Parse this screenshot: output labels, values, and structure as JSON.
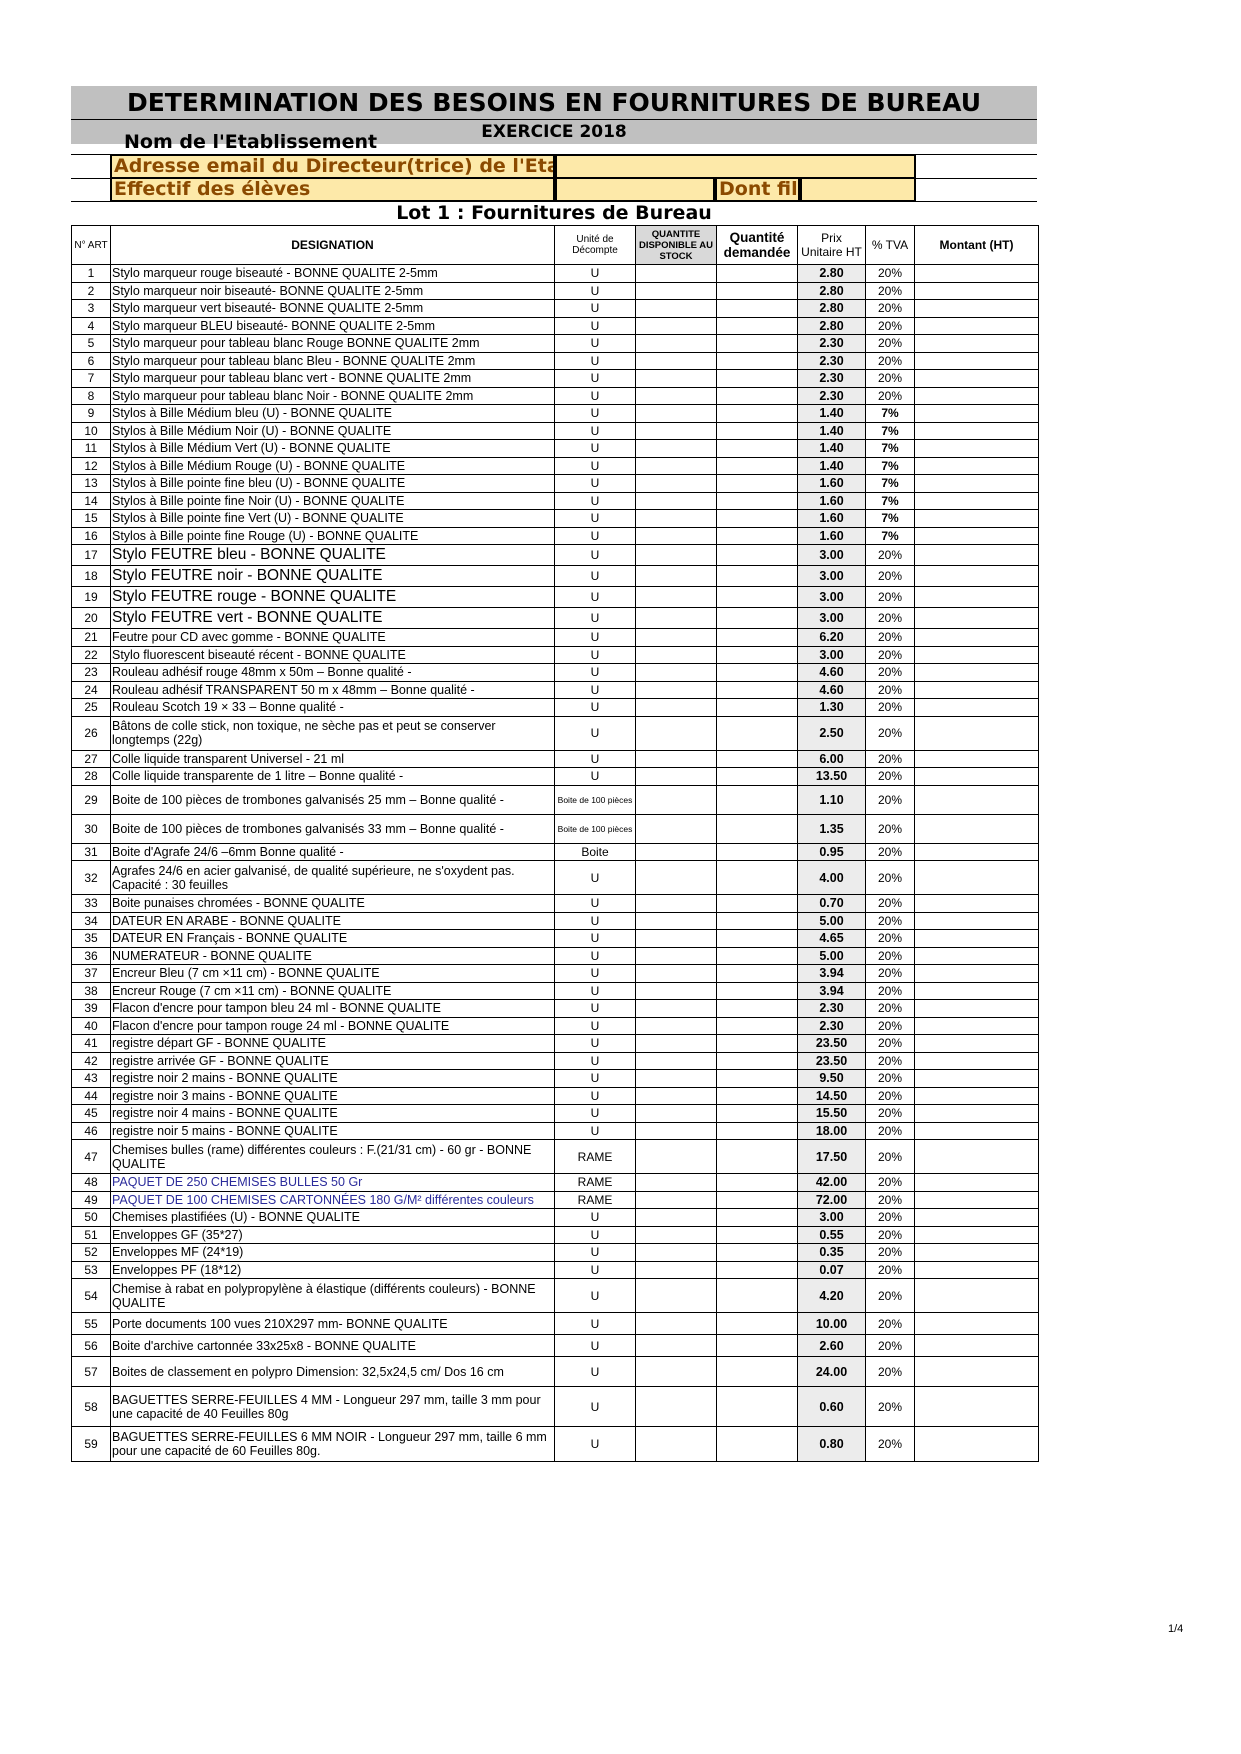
{
  "header": {
    "title": "DETERMINATION DES BESOINS EN FOURNITURES DE BUREAU",
    "exercise": "EXERCICE 2018",
    "establishment_label": "Nom de l'Etablissement",
    "email_label": "Adresse email du Directeur(trice) de l'Etabl",
    "email_value": "",
    "students_label": "Effectif des élèves",
    "students_value": "",
    "girls_label": "Dont fille",
    "girls_value": "",
    "lot_title": "Lot 1 : Fournitures de Bureau"
  },
  "colors": {
    "form_fill": "#fde9a9",
    "form_text": "#8b4a00",
    "title_band": "#c0c0c0",
    "blue_text": "#2b2b9b"
  },
  "columns": {
    "num": "N° ART",
    "designation": "DESIGNATION",
    "unit": "Unité de Décompte",
    "stock": "QUANTITE DISPONIBLE AU STOCK",
    "qty": "Quantité demandée",
    "price": "Prix Unitaire HT",
    "tva": "% TVA",
    "amount": "Montant (HT)"
  },
  "rows": [
    {
      "n": "1",
      "d": "Stylo marqueur rouge biseauté - BONNE QUALITE  2-5mm",
      "u": "U",
      "p": "2.80",
      "t": "20%"
    },
    {
      "n": "2",
      "d": "Stylo marqueur noir biseauté- BONNE QUALITE  2-5mm",
      "u": "U",
      "p": "2.80",
      "t": "20%"
    },
    {
      "n": "3",
      "d": "Stylo marqueur vert biseauté- BONNE QUALITE  2-5mm",
      "u": "U",
      "p": "2.80",
      "t": "20%"
    },
    {
      "n": "4",
      "d": "Stylo marqueur BLEU biseauté- BONNE QUALITE  2-5mm",
      "u": "U",
      "p": "2.80",
      "t": "20%"
    },
    {
      "n": "5",
      "d": "Stylo marqueur pour tableau blanc Rouge BONNE QUALITE  2mm",
      "u": "U",
      "p": "2.30",
      "t": "20%"
    },
    {
      "n": "6",
      "d": "Stylo marqueur pour tableau blanc Bleu - BONNE QUALITE  2mm",
      "u": "U",
      "p": "2.30",
      "t": "20%"
    },
    {
      "n": "7",
      "d": "Stylo marqueur pour tableau blanc vert - BONNE QUALITE  2mm",
      "u": "U",
      "p": "2.30",
      "t": "20%"
    },
    {
      "n": "8",
      "d": "Stylo marqueur pour tableau blanc Noir -  BONNE QUALITE  2mm",
      "u": "U",
      "p": "2.30",
      "t": "20%"
    },
    {
      "n": "9",
      "d": "Stylos à Bille Médium bleu (U) - BONNE QUALITE",
      "u": "U",
      "p": "1.40",
      "t": "7%"
    },
    {
      "n": "10",
      "d": "Stylos à Bille Médium Noir  (U) - BONNE QUALITE",
      "u": "U",
      "p": "1.40",
      "t": "7%"
    },
    {
      "n": "11",
      "d": "Stylos à Bille Médium Vert  (U) - BONNE QUALITE",
      "u": "U",
      "p": "1.40",
      "t": "7%"
    },
    {
      "n": "12",
      "d": "Stylos à Bille Médium Rouge (U) - BONNE QUALITE",
      "u": "U",
      "p": "1.40",
      "t": "7%"
    },
    {
      "n": "13",
      "d": "Stylos à Bille pointe fine bleu (U) - BONNE QUALITE",
      "u": "U",
      "p": "1.60",
      "t": "7%"
    },
    {
      "n": "14",
      "d": "Stylos à Bille pointe fine Noir  (U) - BONNE QUALITE",
      "u": "U",
      "p": "1.60",
      "t": "7%"
    },
    {
      "n": "15",
      "d": "Stylos à Bille pointe fine Vert  (U) - BONNE QUALITE",
      "u": "U",
      "p": "1.60",
      "t": "7%"
    },
    {
      "n": "16",
      "d": "Stylos à Bille pointe fine Rouge (U) - BONNE QUALITE",
      "u": "U",
      "p": "1.60",
      "t": "7%"
    },
    {
      "n": "17",
      "d": "Stylo FEUTRE bleu - BONNE QUALITE",
      "u": "U",
      "p": "3.00",
      "t": "20%"
    },
    {
      "n": "18",
      "d": "Stylo FEUTRE  noir -  BONNE QUALITE",
      "u": "U",
      "p": "3.00",
      "t": "20%"
    },
    {
      "n": "19",
      "d": "Stylo FEUTRE rouge - BONNE QUALITE",
      "u": "U",
      "p": "3.00",
      "t": "20%"
    },
    {
      "n": "20",
      "d": "Stylo FEUTRE vert - BONNE QUALITE",
      "u": "U",
      "p": "3.00",
      "t": "20%"
    },
    {
      "n": "21",
      "d": "Feutre pour CD avec gomme - BONNE QUALITE",
      "u": "U",
      "p": "6.20",
      "t": "20%"
    },
    {
      "n": "22",
      "d": "Stylo fluorescent biseauté récent -  BONNE QUALITE",
      "u": "U",
      "p": "3.00",
      "t": "20%"
    },
    {
      "n": "23",
      "d": "Rouleau adhésif  rouge  48mm x 50m – Bonne qualité -",
      "u": "U",
      "p": "4.60",
      "t": "20%"
    },
    {
      "n": "24",
      "d": "Rouleau adhésif  TRANSPARENT 50 m x 48mm – Bonne qualité -",
      "u": "U",
      "p": "4.60",
      "t": "20%"
    },
    {
      "n": "25",
      "d": "Rouleau Scotch 19 × 33 – Bonne qualité -",
      "u": "U",
      "p": "1.30",
      "t": "20%"
    },
    {
      "n": "26",
      "d": " Bâtons de colle stick, non toxique, ne sèche pas et peut se conserver longtemps (22g)",
      "u": "U",
      "p": "2.50",
      "t": "20%"
    },
    {
      "n": "27",
      "d": "Colle liquide transparent Universel - 21 ml",
      "u": "U",
      "p": "6.00",
      "t": "20%"
    },
    {
      "n": "28",
      "d": "Colle liquide  transparente de 1 litre – Bonne qualité -",
      "u": "U",
      "p": "13.50",
      "t": "20%"
    },
    {
      "n": "29",
      "d": "Boite de 100 pièces de trombones galvanisés 25 mm – Bonne qualité -",
      "u": "Boite de 100 pièces",
      "p": "1.10",
      "t": "20%"
    },
    {
      "n": "30",
      "d": "Boite de 100 pièces de trombones galvanisés 33 mm – Bonne qualité -",
      "u": "Boite de 100 pièces",
      "p": "1.35",
      "t": "20%"
    },
    {
      "n": "31",
      "d": "Boite d'Agrafe 24/6 –6mm  Bonne qualité -",
      "u": "Boite",
      "p": "0.95",
      "t": "20%"
    },
    {
      "n": "32",
      "d": "Agrafes 24/6 en acier galvanisé, de qualité supérieure, ne s'oxydent pas. Capacité : 30 feuilles",
      "u": "U",
      "p": "4.00",
      "t": "20%"
    },
    {
      "n": "33",
      "d": "Boite punaises chromées - BONNE QUALITE",
      "u": "U",
      "p": "0.70",
      "t": "20%"
    },
    {
      "n": "34",
      "d": "DATEUR EN ARABE - BONNE QUALITE",
      "u": "U",
      "p": "5.00",
      "t": "20%"
    },
    {
      "n": "35",
      "d": "DATEUR EN Français - BONNE QUALITE",
      "u": "U",
      "p": "4.65",
      "t": "20%"
    },
    {
      "n": "36",
      "d": "NUMERATEUR - BONNE QUALITE",
      "u": "U",
      "p": "5.00",
      "t": "20%"
    },
    {
      "n": "37",
      "d": "Encreur Bleu (7 cm ×11 cm) - BONNE QUALITE",
      "u": "U",
      "p": "3.94",
      "t": "20%"
    },
    {
      "n": "38",
      "d": "Encreur Rouge (7 cm ×11 cm) - BONNE QUALITE",
      "u": "U",
      "p": "3.94",
      "t": "20%"
    },
    {
      "n": "39",
      "d": "Flacon d'encre pour tampon bleu 24 ml - BONNE QUALITE",
      "u": "U",
      "p": "2.30",
      "t": "20%"
    },
    {
      "n": "40",
      "d": "Flacon d'encre pour tampon rouge 24 ml - BONNE QUALITE",
      "u": "U",
      "p": "2.30",
      "t": "20%"
    },
    {
      "n": "41",
      "d": "registre départ GF - BONNE QUALITE",
      "u": "U",
      "p": "23.50",
      "t": "20%"
    },
    {
      "n": "42",
      "d": "registre arrivée GF - BONNE QUALITE",
      "u": "U",
      "p": "23.50",
      "t": "20%"
    },
    {
      "n": "43",
      "d": "registre noir 2 mains - BONNE QUALITE",
      "u": "U",
      "p": "9.50",
      "t": "20%"
    },
    {
      "n": "44",
      "d": "registre noir 3  mains - BONNE QUALITE",
      "u": "U",
      "p": "14.50",
      "t": "20%"
    },
    {
      "n": "45",
      "d": "registre noir 4 mains - BONNE QUALITE",
      "u": "U",
      "p": "15.50",
      "t": "20%"
    },
    {
      "n": "46",
      "d": "registre noir 5 mains - BONNE QUALITE",
      "u": "U",
      "p": "18.00",
      "t": "20%"
    },
    {
      "n": "47",
      "d": "Chemises bulles (rame) différentes couleurs : F.(21/31 cm) -  60 gr - BONNE QUALITE",
      "u": "RAME",
      "p": "17.50",
      "t": "20%"
    },
    {
      "n": "48",
      "d": "PAQUET DE 250 CHEMISES BULLES 50 Gr",
      "u": "RAME",
      "p": "42.00",
      "t": "20%"
    },
    {
      "n": "49",
      "d": "PAQUET DE 100 CHEMISES CARTONNÉES 180 G/M²  différentes couleurs",
      "u": "RAME",
      "p": "72.00",
      "t": "20%"
    },
    {
      "n": "50",
      "d": "Chemises plastifiées (U) - BONNE QUALITE",
      "u": "U",
      "p": "3.00",
      "t": "20%"
    },
    {
      "n": "51",
      "d": "Enveloppes GF (35*27)",
      "u": "U",
      "p": "0.55",
      "t": "20%"
    },
    {
      "n": "52",
      "d": "Enveloppes MF (24*19)",
      "u": "U",
      "p": "0.35",
      "t": "20%"
    },
    {
      "n": "53",
      "d": "Enveloppes PF (18*12)",
      "u": "U",
      "p": "0.07",
      "t": "20%"
    },
    {
      "n": "54",
      "d": "Chemise à rabat en polypropylène à élastique (différents couleurs) - BONNE QUALITE",
      "u": "U",
      "p": "4.20",
      "t": "20%"
    },
    {
      "n": "55",
      "d": "Porte documents 100 vues  210X297 mm- BONNE QUALITE",
      "u": "U",
      "p": "10.00",
      "t": "20%"
    },
    {
      "n": "56",
      "d": "Boite d'archive cartonnée 33x25x8 - BONNE QUALITE",
      "u": "U",
      "p": "2.60",
      "t": "20%"
    },
    {
      "n": "57",
      "d": " Boites de classement en polypro Dimension: 32,5x24,5 cm/ Dos 16 cm",
      "u": "U",
      "p": "24.00",
      "t": "20%"
    },
    {
      "n": "58",
      "d": "BAGUETTES SERRE-FEUILLES 4 MM - Longueur 297 mm, taille 3 mm pour une capacité de 40 Feuilles 80g",
      "u": "U",
      "p": "0.60",
      "t": "20%"
    },
    {
      "n": "59",
      "d": "BAGUETTES SERRE-FEUILLES  6 MM NOIR - Longueur 297 mm, taille 6 mm pour une capacité de 60 Feuilles 80g.",
      "u": "U",
      "p": "0.80",
      "t": "20%"
    }
  ],
  "footer": {
    "page": "1/4"
  }
}
